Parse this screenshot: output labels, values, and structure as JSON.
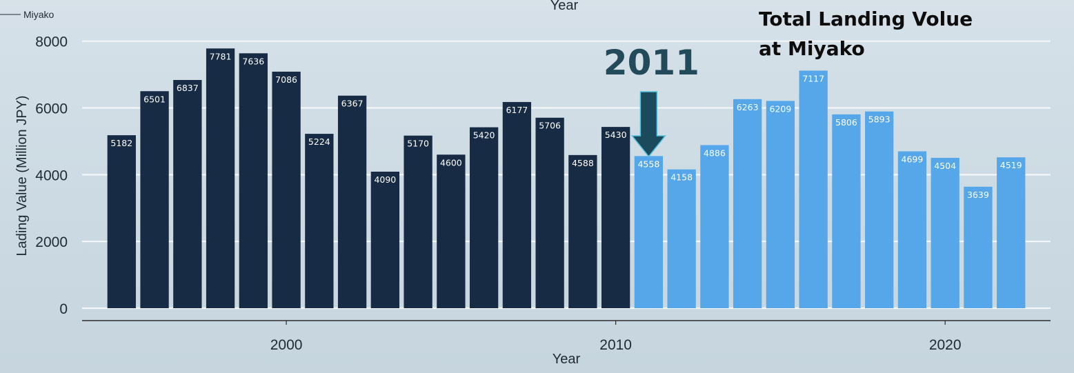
{
  "chart_data": {
    "type": "bar",
    "title": "Total Landing Volue at Miyako",
    "title_lines": [
      "Total Landing Volue",
      "at Miyako"
    ],
    "xlabel": "Year",
    "xlabel_top": "Year",
    "ylabel": "Lading Value (Million JPY)",
    "legend": [
      "Miyako"
    ],
    "legend_placement": "top-left",
    "grid": true,
    "ylim": [
      0,
      8200
    ],
    "xlim": [
      1993.8,
      2023.2
    ],
    "yticks": [
      0,
      2000,
      4000,
      6000,
      8000
    ],
    "xticks": [
      2000,
      2010,
      2020
    ],
    "annotation": {
      "text": "2011",
      "arrow_target_year": 2011
    },
    "colors": {
      "before_2011": "#172b44",
      "from_2011": "#55a7ea",
      "arrow": "#1c4a5d",
      "arrow_outline": "#53c3e0"
    },
    "x": [
      1995,
      1996,
      1997,
      1998,
      1999,
      2000,
      2001,
      2002,
      2003,
      2004,
      2005,
      2006,
      2007,
      2008,
      2009,
      2010,
      2011,
      2012,
      2013,
      2014,
      2015,
      2016,
      2017,
      2018,
      2019,
      2020,
      2021,
      2022
    ],
    "values": [
      5182,
      6501,
      6837,
      7781,
      7636,
      7086,
      5224,
      6367,
      4090,
      5170,
      4600,
      5420,
      6177,
      5706,
      4588,
      5430,
      4558,
      4158,
      4886,
      6263,
      6209,
      7117,
      5806,
      5893,
      4699,
      4504,
      3639,
      4519
    ],
    "highlight_from": 2011
  }
}
